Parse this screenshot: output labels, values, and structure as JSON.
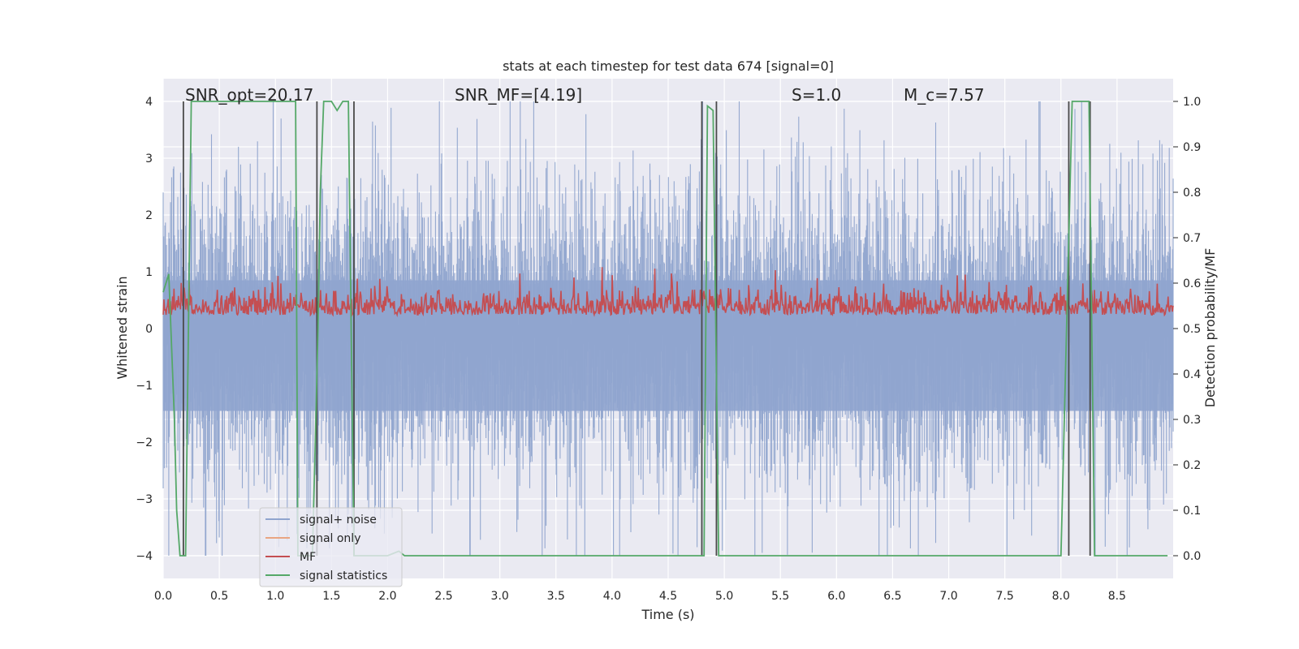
{
  "chart_data": {
    "type": "line",
    "title": "stats at each timestep for test data 674 [signal=0]",
    "xlabel": "Time (s)",
    "ylabel": "Whitened strain",
    "y2label": "Detection probability/MF",
    "xlim": [
      0.0,
      9.0
    ],
    "ylim": [
      -4.4,
      4.4
    ],
    "y2lim": [
      -0.05,
      1.05
    ],
    "xticks": [
      "0.0",
      "0.5",
      "1.0",
      "1.5",
      "2.0",
      "2.5",
      "3.0",
      "3.5",
      "4.0",
      "4.5",
      "5.0",
      "5.5",
      "6.0",
      "6.5",
      "7.0",
      "7.5",
      "8.0",
      "8.5"
    ],
    "yticks": [
      "4",
      "3",
      "2",
      "1",
      "0",
      "−1",
      "−2",
      "−3",
      "−4"
    ],
    "y2ticks": [
      "1.0",
      "0.9",
      "0.8",
      "0.7",
      "0.6",
      "0.5",
      "0.4",
      "0.3",
      "0.2",
      "0.1",
      "0.0"
    ],
    "grid": true,
    "legend_position": "lower-left",
    "annotations": [
      "SNR_opt=20.17",
      "SNR_MF=[4.19]",
      "S=1.0",
      "M_c=7.57"
    ],
    "series": [
      {
        "name": "signal+ noise",
        "color": "#8fa4ce",
        "axis": "left",
        "envelope_max": 4.0,
        "envelope_min": -4.0,
        "typical_abs": 2.2
      },
      {
        "name": "signal only",
        "color": "#e9a582",
        "axis": "left",
        "values": []
      },
      {
        "name": "MF",
        "color": "#c44e52",
        "axis": "right",
        "band": [
          0.5,
          0.63
        ]
      },
      {
        "name": "signal statistics",
        "color": "#55a868",
        "axis": "right",
        "x": [
          0.0,
          0.05,
          0.1,
          0.12,
          0.15,
          0.17,
          0.2,
          0.25,
          0.3,
          0.5,
          1.0,
          1.18,
          1.2,
          1.28,
          1.3,
          1.33,
          1.36,
          1.38,
          1.4,
          1.43,
          1.5,
          1.55,
          1.6,
          1.65,
          1.7,
          1.74,
          1.78,
          2.0,
          2.1,
          2.15,
          2.2,
          2.5,
          3.0,
          4.0,
          4.5,
          4.6,
          4.7,
          4.8,
          4.82,
          4.85,
          4.9,
          4.95,
          4.98,
          5.0,
          5.5,
          6.0,
          7.0,
          7.5,
          8.0,
          8.05,
          8.1,
          8.15,
          8.25,
          8.3,
          8.35,
          8.5,
          8.95
        ],
        "y": [
          0.58,
          0.62,
          0.3,
          0.1,
          0.0,
          0.0,
          0.0,
          1.0,
          1.0,
          1.0,
          1.0,
          1.0,
          0.0,
          0.0,
          0.0,
          0.0,
          0.3,
          0.5,
          0.8,
          1.0,
          1.0,
          0.98,
          1.0,
          1.0,
          0.0,
          0.0,
          0.0,
          0.0,
          0.01,
          0.0,
          0.0,
          0.0,
          0.0,
          0.0,
          0.0,
          0.0,
          0.0,
          0.0,
          0.0,
          0.99,
          0.98,
          0.0,
          0.0,
          0.0,
          0.0,
          0.0,
          0.0,
          0.0,
          0.0,
          0.5,
          1.0,
          1.0,
          1.0,
          0.0,
          0.0,
          0.0,
          0.0
        ]
      }
    ],
    "vlines_x": [
      0.18,
      1.37,
      1.7,
      4.8,
      4.93,
      8.07,
      8.26
    ],
    "vline_color": "#4a4a4a"
  }
}
